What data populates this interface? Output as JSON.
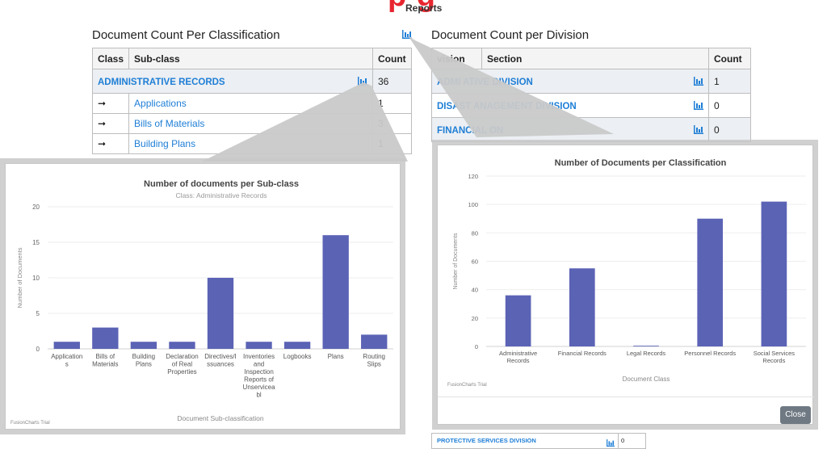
{
  "header": {
    "title_fragment": "p   g",
    "subtitle": "Reports"
  },
  "left_panel": {
    "title": "Document Count Per Classification",
    "columns": [
      "Class",
      "Sub-class",
      "Count"
    ],
    "arrow_glyph": "➞",
    "rows": [
      {
        "label": "ADMINISTRATIVE RECORDS",
        "count": "36"
      }
    ],
    "subrows": [
      {
        "label": "Applications",
        "count": "1"
      },
      {
        "label": "Bills of Materials",
        "count": "3"
      },
      {
        "label": "Building Plans",
        "count": "1"
      }
    ]
  },
  "right_panel": {
    "title": "Document Count per Division",
    "columns": [
      "vision",
      "Section",
      "Count"
    ],
    "rows": [
      {
        "label": "ADMI                    ATIVE DIVISION",
        "count": "1"
      },
      {
        "label": "DISAST                    ANAGEMENT DIVISION",
        "count": "0"
      },
      {
        "label": "FINANCIAL                             ON",
        "count": "0"
      }
    ],
    "bottom_row": {
      "label": "PROTECTIVE SERVICES DIVISION",
      "count": "0"
    }
  },
  "right_popup": {
    "close_label": "Close"
  },
  "charts_watermark": "FusionCharts Trial",
  "colors": {
    "bar": "#5b63b5",
    "link": "#1e7ed6",
    "heading_red": "#e8262f"
  },
  "chart_data": [
    {
      "type": "bar",
      "title": "Number of documents per Sub-class",
      "subtitle": "Class: Administrative Records",
      "xlabel": "Document Sub-classification",
      "ylabel": "Number of Documents",
      "ylim": [
        0,
        20
      ],
      "yticks": [
        0,
        5,
        10,
        15,
        20
      ],
      "categories": [
        "Application s",
        "Bills of Materials",
        "Building Plans",
        "Declaration of Real Properties",
        "Directives/I ssuances",
        "Inventories and Inspection Reports of Unservicea bl",
        "Logbooks",
        "Plans",
        "Routing Slips"
      ],
      "values": [
        1,
        3,
        1,
        1,
        10,
        1,
        1,
        16,
        2
      ]
    },
    {
      "type": "bar",
      "title": "Number of Documents per Classification",
      "xlabel": "Document Class",
      "ylabel": "Number of Documents",
      "ylim": [
        0,
        120
      ],
      "yticks": [
        0,
        20,
        40,
        60,
        80,
        100,
        120
      ],
      "categories": [
        "Administrative Records",
        "Financial Records",
        "Legal Records",
        "Personnel Records",
        "Social Services Records"
      ],
      "values": [
        36,
        55,
        0.5,
        90,
        102
      ]
    }
  ]
}
